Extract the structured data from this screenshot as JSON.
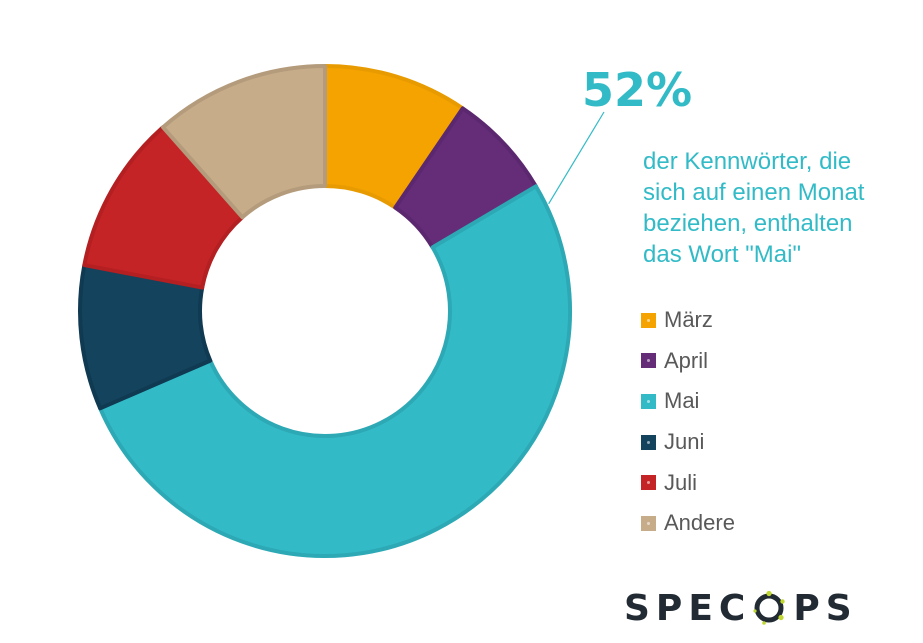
{
  "headline": {
    "value": "52%",
    "color": "#32BBC7"
  },
  "subtitle": {
    "text": "der Kennwörter, die\nsich auf einen Monat\nbeziehen, enthalten\ndas Wort \"Mai\"",
    "color": "#32BBC7"
  },
  "chart_data": {
    "type": "pie",
    "variant": "donut",
    "title": "",
    "legend_position": "right",
    "start_angle_degrees": 0,
    "direction": "clockwise",
    "categories": [
      "März",
      "April",
      "Mai",
      "Juni",
      "Juli",
      "Andere"
    ],
    "values": [
      9.5,
      7,
      52,
      9.5,
      10.5,
      11.5
    ],
    "colors": [
      "#F5A300",
      "#652D78",
      "#32BBC7",
      "#14435E",
      "#C52427",
      "#C7AC89"
    ],
    "stroke_colors": [
      "#E89B00",
      "#5B2870",
      "#2CA9B5",
      "#0F3A52",
      "#B41F22",
      "#B49B7B"
    ],
    "highlight": {
      "category": "Mai",
      "label": "52%"
    }
  },
  "brand": {
    "text_before": "SPEC",
    "text_after": "PS",
    "logo_name": "SPECOPS",
    "text_color": "#222B33",
    "accent_color": "#BFD730"
  }
}
